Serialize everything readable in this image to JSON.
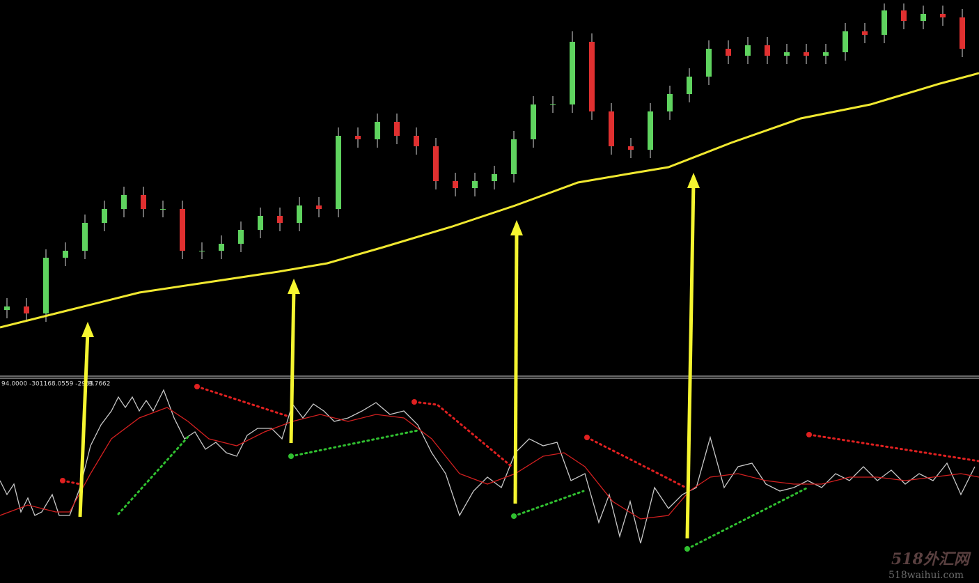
{
  "chart_data": [
    {
      "type": "candlestick",
      "xlim": [
        0,
        1406
      ],
      "ylim": [
        0,
        540
      ],
      "up_color": "#5fd35f",
      "down_color": "#e03030",
      "wick_color": "#d8d8d8",
      "x": [
        10,
        38,
        66,
        94,
        122,
        150,
        178,
        206,
        234,
        262,
        290,
        318,
        346,
        374,
        402,
        430,
        458,
        486,
        514,
        542,
        570,
        598,
        626,
        654,
        682,
        710,
        738,
        766,
        794,
        822,
        850,
        878,
        906,
        934,
        962,
        990,
        1018,
        1046,
        1074,
        1102,
        1130,
        1158,
        1186,
        1214,
        1242,
        1270,
        1298,
        1326,
        1354,
        1382
      ],
      "open": [
        95,
        100,
        90,
        170,
        180,
        220,
        240,
        260,
        240,
        240,
        180,
        180,
        190,
        210,
        230,
        220,
        245,
        240,
        345,
        340,
        365,
        345,
        330,
        280,
        270,
        280,
        290,
        340,
        390,
        390,
        480,
        380,
        330,
        325,
        380,
        405,
        430,
        470,
        460,
        475,
        460,
        465,
        460,
        465,
        495,
        490,
        525,
        510,
        520,
        515
      ],
      "high": [
        112,
        112,
        182,
        192,
        232,
        252,
        272,
        272,
        252,
        252,
        192,
        202,
        222,
        242,
        242,
        257,
        257,
        357,
        357,
        377,
        377,
        357,
        342,
        292,
        292,
        302,
        352,
        402,
        402,
        495,
        492,
        392,
        342,
        392,
        417,
        442,
        482,
        482,
        487,
        487,
        477,
        477,
        477,
        507,
        507,
        535,
        535,
        532,
        532,
        527
      ],
      "low": [
        83,
        78,
        78,
        158,
        168,
        208,
        228,
        228,
        228,
        168,
        168,
        168,
        178,
        198,
        208,
        208,
        228,
        228,
        328,
        328,
        333,
        318,
        268,
        258,
        258,
        268,
        278,
        328,
        378,
        378,
        368,
        318,
        313,
        313,
        368,
        393,
        418,
        448,
        448,
        448,
        448,
        448,
        448,
        453,
        478,
        478,
        498,
        498,
        503,
        458
      ],
      "close": [
        100,
        90,
        170,
        180,
        220,
        240,
        260,
        240,
        240,
        180,
        180,
        190,
        210,
        230,
        220,
        245,
        240,
        345,
        340,
        365,
        345,
        330,
        280,
        270,
        280,
        290,
        340,
        390,
        390,
        480,
        380,
        330,
        325,
        380,
        405,
        430,
        470,
        460,
        475,
        460,
        465,
        460,
        465,
        495,
        490,
        525,
        510,
        520,
        515,
        470
      ],
      "lines": [
        {
          "color": "#f0e830",
          "x": [
            0,
            100,
            200,
            300,
            400,
            470,
            550,
            650,
            740,
            830,
            900,
            960,
            1050,
            1150,
            1250,
            1350,
            1406
          ],
          "values": [
            70,
            95,
            120,
            135,
            150,
            162,
            185,
            215,
            245,
            278,
            290,
            300,
            335,
            370,
            390,
            420,
            435
          ]
        }
      ]
    },
    {
      "type": "line",
      "xlim": [
        0,
        1406
      ],
      "ylim": [
        0,
        300
      ],
      "header": [
        "94.0000 -301168.0559 -2985",
        "9.7662"
      ],
      "lines": [
        {
          "color": "#c8c8c8",
          "x": [
            0,
            10,
            20,
            30,
            40,
            50,
            60,
            75,
            85,
            100,
            115,
            130,
            145,
            160,
            170,
            180,
            190,
            200,
            210,
            220,
            235,
            250,
            265,
            280,
            295,
            310,
            325,
            340,
            355,
            370,
            390,
            405,
            420,
            435,
            450,
            465,
            480,
            500,
            520,
            540,
            560,
            580,
            600,
            620,
            640,
            660,
            680,
            700,
            720,
            740,
            760,
            780,
            800,
            820,
            840,
            860,
            875,
            890,
            905,
            920,
            940,
            960,
            980,
            1000,
            1020,
            1040,
            1060,
            1080,
            1100,
            1120,
            1140,
            1160,
            1180,
            1200,
            1220,
            1240,
            1260,
            1280,
            1300,
            1320,
            1340,
            1360,
            1380,
            1400
          ],
          "values": [
            147,
            127,
            142,
            102,
            122,
            97,
            102,
            127,
            97,
            97,
            137,
            197,
            227,
            247,
            267,
            252,
            267,
            247,
            262,
            247,
            277,
            237,
            207,
            217,
            192,
            202,
            187,
            182,
            212,
            222,
            222,
            207,
            257,
            237,
            257,
            247,
            232,
            237,
            247,
            259,
            242,
            247,
            227,
            187,
            157,
            97,
            132,
            152,
            137,
            187,
            207,
            197,
            202,
            147,
            157,
            87,
            127,
            67,
            117,
            57,
            137,
            107,
            127,
            137,
            209,
            137,
            167,
            172,
            142,
            132,
            137,
            147,
            137,
            157,
            147,
            167,
            147,
            162,
            142,
            157,
            147,
            172,
            127,
            167
          ]
        },
        {
          "color": "#d42020",
          "x": [
            0,
            40,
            80,
            100,
            130,
            160,
            200,
            240,
            270,
            300,
            340,
            380,
            420,
            460,
            500,
            540,
            580,
            620,
            660,
            700,
            740,
            780,
            810,
            840,
            880,
            920,
            960,
            990,
            1020,
            1060,
            1100,
            1140,
            1180,
            1220,
            1260,
            1300,
            1340,
            1380,
            1406
          ],
          "values": [
            97,
            112,
            102,
            102,
            157,
            207,
            237,
            252,
            232,
            207,
            197,
            217,
            232,
            242,
            232,
            242,
            237,
            207,
            157,
            142,
            157,
            182,
            187,
            167,
            117,
            92,
            97,
            132,
            152,
            157,
            147,
            142,
            142,
            152,
            152,
            147,
            152,
            157,
            152
          ]
        }
      ]
    },
    {
      "type": "watermark",
      "texts": [
        "518外汇网",
        "518waihui.com"
      ]
    }
  ]
}
